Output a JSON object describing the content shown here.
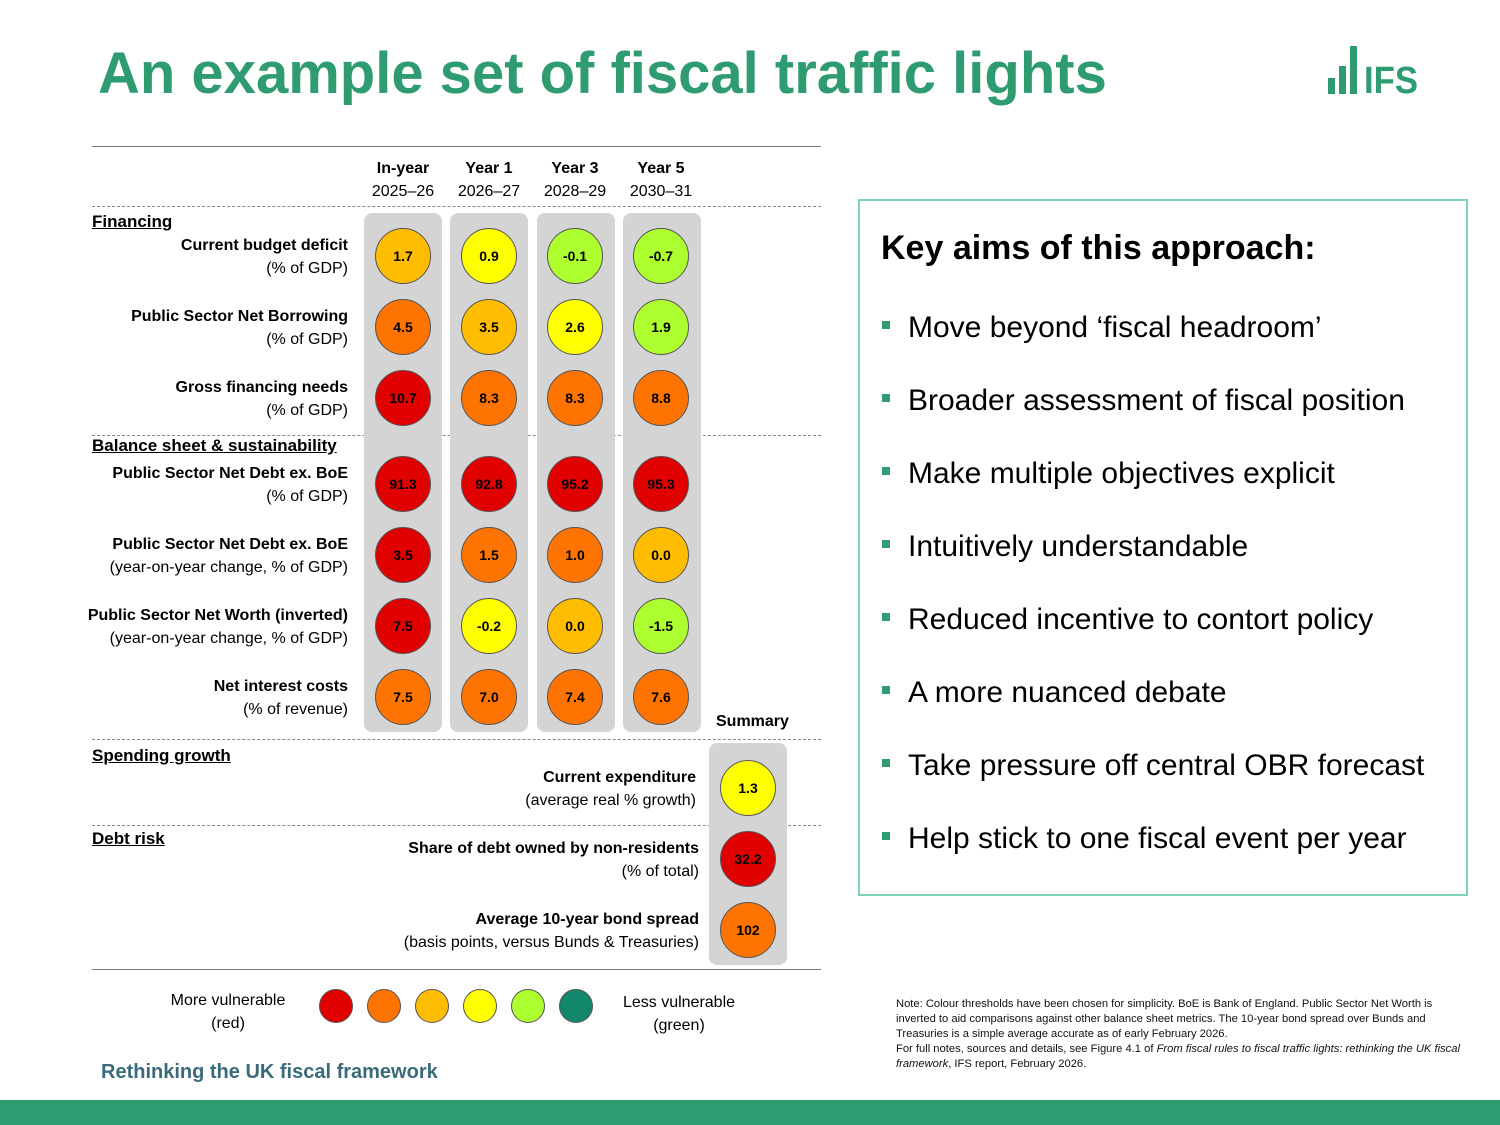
{
  "title": "An example set of fiscal traffic lights",
  "logo_text": "IFS",
  "colors": {
    "red": "#e00000",
    "orange": "#ff7300",
    "amber": "#ffbd00",
    "yellow": "#ffff00",
    "lime": "#adff2f",
    "green": "#13876a"
  },
  "columns": [
    {
      "name": "In-year",
      "years": "2025–26"
    },
    {
      "name": "Year 1",
      "years": "2026–27"
    },
    {
      "name": "Year 3",
      "years": "2028–29"
    },
    {
      "name": "Year 5",
      "years": "2030–31"
    }
  ],
  "summary_label": "Summary",
  "sections": {
    "financing": "Financing",
    "balance": "Balance sheet & sustainability",
    "spending": "Spending growth",
    "debt": "Debt risk"
  },
  "rows": [
    {
      "name": "Current budget deficit",
      "unit": "(% of GDP)",
      "values": [
        "1.7",
        "0.9",
        "-0.1",
        "-0.7"
      ],
      "levels": [
        "amber",
        "yellow",
        "lime",
        "lime"
      ]
    },
    {
      "name": "Public Sector Net Borrowing",
      "unit": "(% of GDP)",
      "values": [
        "4.5",
        "3.5",
        "2.6",
        "1.9"
      ],
      "levels": [
        "orange",
        "amber",
        "yellow",
        "lime"
      ]
    },
    {
      "name": "Gross financing needs",
      "unit": "(% of GDP)",
      "values": [
        "10.7",
        "8.3",
        "8.3",
        "8.8"
      ],
      "levels": [
        "red",
        "orange",
        "orange",
        "orange"
      ]
    },
    {
      "name": "Public Sector Net Debt ex. BoE",
      "unit": "(% of GDP)",
      "values": [
        "91.3",
        "92.8",
        "95.2",
        "95.3"
      ],
      "levels": [
        "red",
        "red",
        "red",
        "red"
      ]
    },
    {
      "name": "Public Sector Net Debt ex. BoE",
      "unit": "(year-on-year change, % of GDP)",
      "values": [
        "3.5",
        "1.5",
        "1.0",
        "0.0"
      ],
      "levels": [
        "red",
        "orange",
        "orange",
        "amber"
      ]
    },
    {
      "name": "Public Sector Net Worth (inverted)",
      "unit": "(year-on-year change, % of GDP)",
      "values": [
        "7.5",
        "-0.2",
        "0.0",
        "-1.5"
      ],
      "levels": [
        "red",
        "yellow",
        "amber",
        "lime"
      ]
    },
    {
      "name": "Net interest costs",
      "unit": "(% of revenue)",
      "values": [
        "7.5",
        "7.0",
        "7.4",
        "7.6"
      ],
      "levels": [
        "orange",
        "orange",
        "orange",
        "orange"
      ]
    }
  ],
  "summary_rows": [
    {
      "name": "Current expenditure",
      "unit": "(average real % growth)",
      "value": "1.3",
      "level": "yellow"
    },
    {
      "name": "Share of debt owned by non-residents",
      "unit": "(% of total)",
      "value": "32.2",
      "level": "red"
    },
    {
      "name": "Average 10-year bond spread",
      "unit": "(basis points, versus Bunds & Treasuries)",
      "value": "102",
      "level": "orange"
    }
  ],
  "legend": {
    "left": "More vulnerable",
    "left_sub": "(red)",
    "right": "Less vulnerable",
    "right_sub": "(green)",
    "levels": [
      "red",
      "orange",
      "amber",
      "yellow",
      "lime",
      "green"
    ]
  },
  "aims": {
    "heading": "Key aims of this approach:",
    "items": [
      "Move beyond ‘fiscal headroom’",
      "Broader assessment of fiscal position",
      "Make multiple objectives explicit",
      "Intuitively understandable",
      "Reduced incentive to contort policy",
      "A more nuanced debate",
      "Take pressure off central OBR forecast",
      "Help stick to one fiscal event per year"
    ]
  },
  "note": {
    "line1": "Note: Colour thresholds have been chosen for simplicity. BoE is Bank of England. Public Sector Net Worth is inverted to aid comparisons against other balance sheet metrics. The 10-year bond spread over Bunds and Treasuries is a simple average accurate as of early February 2026.",
    "line2_pre": "For full notes, sources and details, see Figure 4.1 of ",
    "line2_italic": "From fiscal rules to fiscal traffic lights: rethinking the UK fiscal framework",
    "line2_post": ", IFS report, February 2026."
  },
  "footer": "Rethinking the UK fiscal framework"
}
